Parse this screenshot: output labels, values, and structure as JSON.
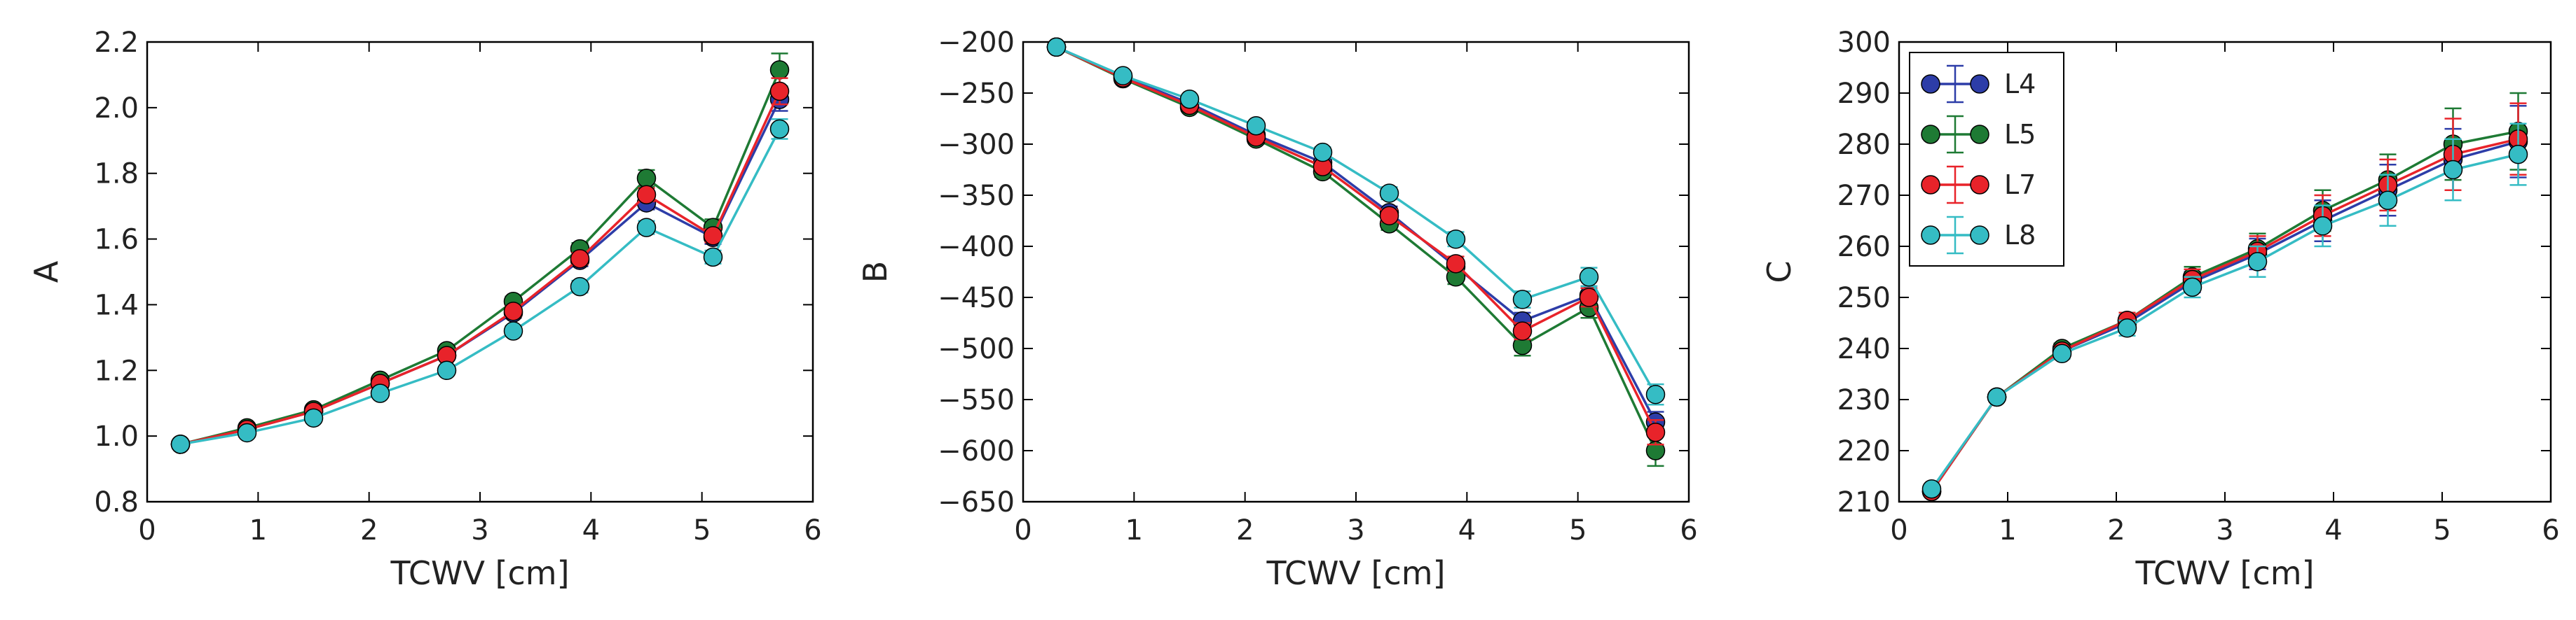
{
  "chart_data": [
    {
      "type": "line",
      "xlabel": "TCWV [cm]",
      "ylabel": "A",
      "xlim": [
        0,
        6
      ],
      "ylim": [
        0.8,
        2.2
      ],
      "xticks": [
        0,
        1,
        2,
        3,
        4,
        5,
        6
      ],
      "yticks": [
        0.8,
        1.0,
        1.2,
        1.4,
        1.6,
        1.8,
        2.0,
        2.2
      ],
      "ytick_labels": [
        "0.8",
        "1.0",
        "1.2",
        "1.4",
        "1.6",
        "1.8",
        "2.0",
        "2.2"
      ],
      "x": [
        0.3,
        0.9,
        1.5,
        2.1,
        2.7,
        3.3,
        3.9,
        4.5,
        5.1,
        5.7
      ],
      "series": [
        {
          "name": "L4",
          "color": "#2d3da8",
          "values": [
            0.975,
            1.02,
            1.075,
            1.16,
            1.245,
            1.375,
            1.535,
            1.71,
            1.605,
            2.025
          ],
          "errors": [
            0.004,
            0.006,
            0.008,
            0.01,
            0.012,
            0.015,
            0.018,
            0.02,
            0.02,
            0.035
          ]
        },
        {
          "name": "L5",
          "color": "#1e7a34",
          "values": [
            0.975,
            1.025,
            1.08,
            1.17,
            1.26,
            1.41,
            1.57,
            1.785,
            1.635,
            2.115
          ],
          "errors": [
            0.004,
            0.006,
            0.008,
            0.01,
            0.012,
            0.015,
            0.018,
            0.025,
            0.025,
            0.05
          ]
        },
        {
          "name": "L7",
          "color": "#e8232a",
          "values": [
            0.975,
            1.02,
            1.075,
            1.16,
            1.245,
            1.38,
            1.54,
            1.735,
            1.61,
            2.05
          ],
          "errors": [
            0.004,
            0.006,
            0.008,
            0.01,
            0.012,
            0.015,
            0.018,
            0.02,
            0.02,
            0.04
          ]
        },
        {
          "name": "L8",
          "color": "#35bcc4",
          "values": [
            0.975,
            1.01,
            1.055,
            1.13,
            1.2,
            1.32,
            1.455,
            1.635,
            1.545,
            1.935
          ],
          "errors": [
            0.004,
            0.006,
            0.008,
            0.01,
            0.012,
            0.015,
            0.018,
            0.02,
            0.02,
            0.03
          ]
        }
      ]
    },
    {
      "type": "line",
      "xlabel": "TCWV [cm]",
      "ylabel": "B",
      "xlim": [
        0,
        6
      ],
      "ylim": [
        -650,
        -200
      ],
      "xticks": [
        0,
        1,
        2,
        3,
        4,
        5,
        6
      ],
      "yticks": [
        -650,
        -600,
        -550,
        -500,
        -450,
        -400,
        -350,
        -300,
        -250,
        -200
      ],
      "ytick_labels": [
        "−650",
        "−600",
        "−550",
        "−500",
        "−450",
        "−400",
        "−350",
        "−300",
        "−250",
        "−200"
      ],
      "x": [
        0.3,
        0.9,
        1.5,
        2.1,
        2.7,
        3.3,
        3.9,
        4.5,
        5.1,
        5.7
      ],
      "series": [
        {
          "name": "L4",
          "color": "#2d3da8",
          "values": [
            -205,
            -234,
            -260,
            -291,
            -318,
            -367,
            -420,
            -473,
            -448,
            -572
          ],
          "errors": [
            2,
            3,
            3,
            4,
            5,
            6,
            7,
            8,
            9,
            10
          ]
        },
        {
          "name": "L5",
          "color": "#1e7a34",
          "values": [
            -205,
            -236,
            -264,
            -295,
            -327,
            -378,
            -430,
            -497,
            -460,
            -600
          ],
          "errors": [
            2,
            3,
            3,
            4,
            5,
            6,
            7,
            10,
            10,
            15
          ]
        },
        {
          "name": "L7",
          "color": "#e8232a",
          "values": [
            -205,
            -235,
            -262,
            -293,
            -322,
            -370,
            -417,
            -483,
            -450,
            -582
          ],
          "errors": [
            2,
            3,
            3,
            4,
            5,
            6,
            7,
            8,
            9,
            12
          ]
        },
        {
          "name": "L8",
          "color": "#35bcc4",
          "values": [
            -205,
            -233,
            -256,
            -282,
            -308,
            -348,
            -393,
            -452,
            -430,
            -545
          ],
          "errors": [
            2,
            3,
            3,
            4,
            5,
            6,
            7,
            8,
            9,
            10
          ]
        }
      ]
    },
    {
      "type": "line",
      "xlabel": "TCWV [cm]",
      "ylabel": "C",
      "xlim": [
        0,
        6
      ],
      "ylim": [
        210,
        300
      ],
      "xticks": [
        0,
        1,
        2,
        3,
        4,
        5,
        6
      ],
      "yticks": [
        210,
        220,
        230,
        240,
        250,
        260,
        270,
        280,
        290,
        300
      ],
      "ytick_labels": [
        "210",
        "220",
        "230",
        "240",
        "250",
        "260",
        "270",
        "280",
        "290",
        "300"
      ],
      "x": [
        0.3,
        0.9,
        1.5,
        2.1,
        2.7,
        3.3,
        3.9,
        4.5,
        5.1,
        5.7
      ],
      "legend": "top-left",
      "series": [
        {
          "name": "L4",
          "color": "#2d3da8",
          "values": [
            212,
            230.5,
            239.5,
            245,
            253,
            258.5,
            265,
            271,
            277,
            280.5
          ],
          "errors": [
            0.5,
            0.8,
            1,
            1.5,
            2,
            3,
            4,
            5,
            6,
            7
          ]
        },
        {
          "name": "L5",
          "color": "#1e7a34",
          "values": [
            212,
            230.5,
            240,
            245.5,
            254,
            259.5,
            267,
            273,
            280,
            282.5
          ],
          "errors": [
            0.5,
            0.8,
            1,
            1.5,
            2,
            3,
            4,
            5,
            7,
            7.5
          ]
        },
        {
          "name": "L7",
          "color": "#e8232a",
          "values": [
            212,
            230.5,
            239.5,
            245.5,
            253.5,
            259,
            266,
            272,
            278,
            281
          ],
          "errors": [
            0.5,
            0.8,
            1,
            1.5,
            2,
            3,
            4,
            5,
            7,
            7
          ]
        },
        {
          "name": "L8",
          "color": "#35bcc4",
          "values": [
            212.5,
            230.5,
            239,
            244,
            252,
            257,
            264,
            269,
            275,
            278
          ],
          "errors": [
            0.5,
            0.8,
            1,
            1.5,
            2,
            3,
            4,
            5,
            6,
            6
          ]
        }
      ]
    }
  ]
}
